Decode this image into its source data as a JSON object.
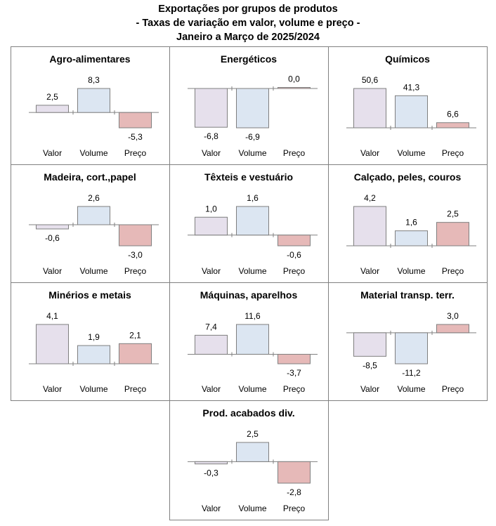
{
  "header": {
    "title_line1": "Exportações por grupos de produtos",
    "title_line2": "- Taxas de variação em valor, volume e preço -",
    "title_line3": "Janeiro a Março de 2025/2024"
  },
  "colors": {
    "valor_fill": "#E6E0EC",
    "volume_fill": "#DCE6F2",
    "preco_fill": "#E6B9B8",
    "bar_stroke": "#7F7F7F",
    "axis": "#808080",
    "panel_border": "#808080"
  },
  "chart_data": [
    {
      "type": "bar",
      "title": "Agro-alimentares",
      "categories": [
        "Valor",
        "Volume",
        "Preço"
      ],
      "values": [
        2.5,
        8.3,
        -5.3
      ],
      "value_labels": [
        "2,5",
        "8,3",
        "-5,3"
      ]
    },
    {
      "type": "bar",
      "title": "Energéticos",
      "categories": [
        "Valor",
        "Volume",
        "Preço"
      ],
      "values": [
        -6.8,
        -6.9,
        0.0
      ],
      "value_labels": [
        "-6,8",
        "-6,9",
        "0,0"
      ]
    },
    {
      "type": "bar",
      "title": "Químicos",
      "categories": [
        "Valor",
        "Volume",
        "Preço"
      ],
      "values": [
        50.6,
        41.3,
        6.6
      ],
      "value_labels": [
        "50,6",
        "41,3",
        "6,6"
      ]
    },
    {
      "type": "bar",
      "title": "Madeira, cort.,papel",
      "categories": [
        "Valor",
        "Volume",
        "Preço"
      ],
      "values": [
        -0.6,
        2.6,
        -3.0
      ],
      "value_labels": [
        "-0,6",
        "2,6",
        "-3,0"
      ]
    },
    {
      "type": "bar",
      "title": "Têxteis e vestuário",
      "categories": [
        "Valor",
        "Volume",
        "Preço"
      ],
      "values": [
        1.0,
        1.6,
        -0.6
      ],
      "value_labels": [
        "1,0",
        "1,6",
        "-0,6"
      ]
    },
    {
      "type": "bar",
      "title": "Calçado, peles, couros",
      "categories": [
        "Valor",
        "Volume",
        "Preço"
      ],
      "values": [
        4.2,
        1.6,
        2.5
      ],
      "value_labels": [
        "4,2",
        "1,6",
        "2,5"
      ]
    },
    {
      "type": "bar",
      "title": "Minérios e metais",
      "categories": [
        "Valor",
        "Volume",
        "Preço"
      ],
      "values": [
        4.1,
        1.9,
        2.1
      ],
      "value_labels": [
        "4,1",
        "1,9",
        "2,1"
      ]
    },
    {
      "type": "bar",
      "title": "Máquinas, aparelhos",
      "categories": [
        "Valor",
        "Volume",
        "Preço"
      ],
      "values": [
        7.4,
        11.6,
        -3.7
      ],
      "value_labels": [
        "7,4",
        "11,6",
        "-3,7"
      ]
    },
    {
      "type": "bar",
      "title": "Material transp. terr.",
      "categories": [
        "Valor",
        "Volume",
        "Preço"
      ],
      "values": [
        -8.5,
        -11.2,
        3.0
      ],
      "value_labels": [
        "-8,5",
        "-11,2",
        "3,0"
      ]
    },
    {
      "type": "bar",
      "title": "Prod. acabados div.",
      "categories": [
        "Valor",
        "Volume",
        "Preço"
      ],
      "values": [
        -0.3,
        2.5,
        -2.8
      ],
      "value_labels": [
        "-0,3",
        "2,5",
        "-2,8"
      ]
    }
  ]
}
